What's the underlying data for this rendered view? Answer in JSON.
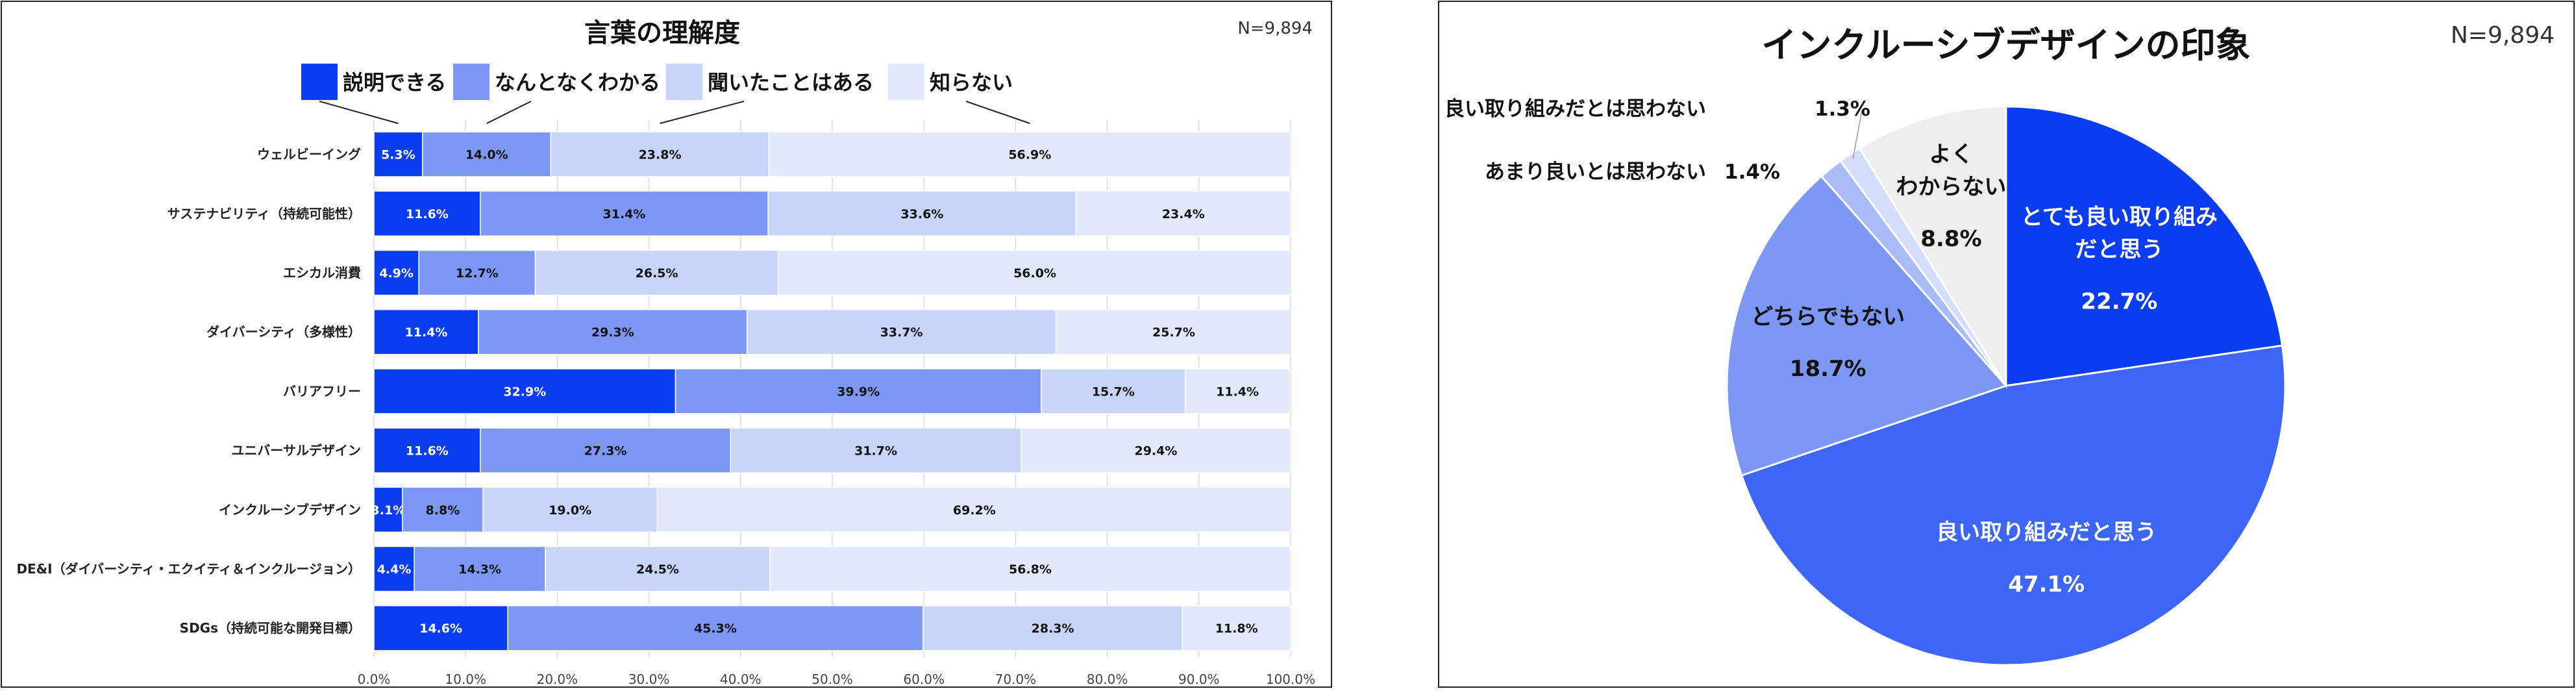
{
  "chart_data": [
    {
      "type": "bar",
      "stacked": true,
      "orientation": "horizontal",
      "title": "言葉の理解度",
      "note": "N=9,894",
      "legend_position": "top",
      "categories": [
        "ウェルビーイング",
        "サステナビリティ（持続可能性）",
        "エシカル消費",
        "ダイバーシティ（多様性）",
        "バリアフリー",
        "ユニバーサルデザイン",
        "インクルーシブデザイン",
        "DE&I（ダイバーシティ・エクイティ＆インクルージョン）",
        "SDGs（持続可能な開発目標）"
      ],
      "series": [
        {
          "name": "説明できる",
          "color": "#0a3cf0",
          "label_color": "#ffffff",
          "values": [
            5.3,
            11.6,
            4.9,
            11.4,
            32.9,
            11.6,
            3.1,
            4.4,
            14.6
          ]
        },
        {
          "name": "なんとなくわかる",
          "color": "#7d98f4",
          "label_color": "#111111",
          "values": [
            14.0,
            31.4,
            12.7,
            29.3,
            39.9,
            27.3,
            8.8,
            14.3,
            45.3
          ]
        },
        {
          "name": "聞いたことはある",
          "color": "#c9d4fa",
          "label_color": "#111111",
          "values": [
            23.8,
            33.6,
            26.5,
            33.7,
            15.7,
            31.7,
            19.0,
            24.5,
            28.3
          ]
        },
        {
          "name": "知らない",
          "color": "#e3e9fc",
          "label_color": "#111111",
          "values": [
            56.9,
            23.4,
            56.0,
            25.7,
            11.4,
            29.4,
            69.2,
            56.8,
            11.8
          ]
        }
      ],
      "xlim": [
        0,
        100
      ],
      "xticks": [
        "0.0%",
        "10.0%",
        "20.0%",
        "30.0%",
        "40.0%",
        "50.0%",
        "60.0%",
        "70.0%",
        "80.0%",
        "90.0%",
        "100.0%"
      ],
      "grid": true
    },
    {
      "type": "pie",
      "title": "インクルーシブデザインの印象",
      "note": "N=9,894",
      "slices": [
        {
          "name": "とても良い取り組みだと思う",
          "lines": [
            "とても良い取り組み",
            "だと思う"
          ],
          "value": 22.7,
          "label": "22.7%",
          "color": "#0a3cf0",
          "text_color": "#ffffff"
        },
        {
          "name": "良い取り組みだと思う",
          "lines": [
            "良い取り組みだと思う"
          ],
          "value": 47.1,
          "label": "47.1%",
          "color": "#3d66f6",
          "text_color": "#ffffff"
        },
        {
          "name": "どちらでもない",
          "lines": [
            "どちらでもない"
          ],
          "value": 18.7,
          "label": "18.7%",
          "color": "#7d98f4",
          "text_color": "#111111"
        },
        {
          "name": "あまり良いとは思わない",
          "lines": [
            "あまり良いとは思わない"
          ],
          "value": 1.4,
          "label": "1.4%",
          "color": "#aabcf7",
          "text_color": "#111111"
        },
        {
          "name": "良い取り組みだとは思わない",
          "lines": [
            "良い取り組みだとは思わない"
          ],
          "value": 1.3,
          "label": "1.3%",
          "color": "#d4ddfb",
          "text_color": "#111111"
        },
        {
          "name": "よくわからない",
          "lines": [
            "よく",
            "わからない"
          ],
          "value": 8.8,
          "label": "8.8%",
          "color": "#eeeeee",
          "text_color": "#111111"
        }
      ]
    }
  ]
}
